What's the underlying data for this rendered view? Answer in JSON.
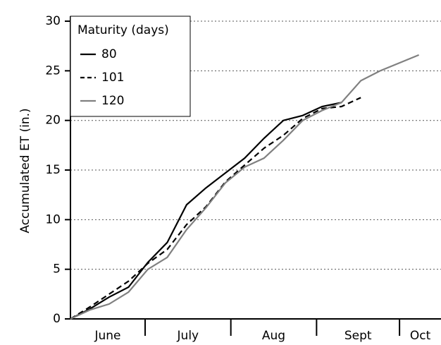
{
  "chart_data": {
    "type": "line",
    "ylabel": "Accumulated ET (in.)",
    "categories": [
      "June",
      "July",
      "Aug",
      "Sept",
      "Oct"
    ],
    "x": [
      0,
      7,
      14,
      21,
      28,
      35,
      42,
      49,
      56,
      63,
      70,
      77,
      84,
      91,
      98,
      105,
      112,
      119,
      126
    ],
    "xlim": [
      0,
      134
    ],
    "xticks": [
      27,
      58,
      89,
      119
    ],
    "ylim": [
      0,
      30.5
    ],
    "yticks": [
      0,
      5,
      10,
      15,
      20,
      25,
      30
    ],
    "grid": true,
    "legend": {
      "title": "Maturity (days)",
      "position": "upper left"
    },
    "series": [
      {
        "name": "80",
        "color": "#000000",
        "dash": "solid",
        "values": [
          0,
          1.0,
          2.2,
          3.2,
          5.7,
          7.7,
          11.5,
          13.2,
          14.7,
          16.2,
          18.2,
          20.0,
          20.5,
          21.4,
          21.8,
          null,
          null,
          null,
          null
        ]
      },
      {
        "name": "101",
        "color": "#000000",
        "dash": "dashed",
        "values": [
          0,
          1.2,
          2.5,
          3.8,
          5.6,
          7.0,
          9.5,
          11.3,
          13.8,
          15.5,
          17.2,
          18.5,
          20.2,
          21.2,
          21.4,
          22.3,
          null,
          null,
          null
        ]
      },
      {
        "name": "120",
        "color": "#808080",
        "dash": "solid",
        "values": [
          0,
          0.9,
          1.5,
          2.7,
          5.0,
          6.2,
          9.0,
          11.2,
          13.7,
          15.3,
          16.2,
          18.0,
          20.0,
          21.0,
          21.8,
          24.0,
          25.0,
          25.8,
          26.6
        ]
      }
    ]
  }
}
